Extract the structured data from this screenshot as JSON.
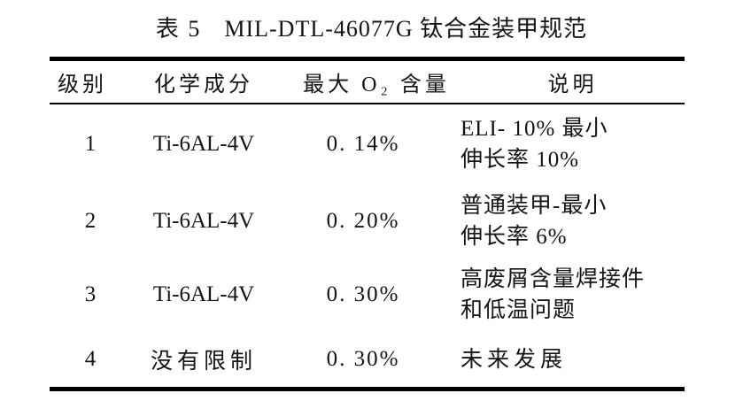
{
  "page": {
    "background": "#ffffff",
    "text_color": "#141414",
    "rule_color": "#000000"
  },
  "caption": {
    "label": "表 5",
    "title": "MIL-DTL-46077G 钛合金装甲规范"
  },
  "table": {
    "columns": [
      "级别",
      "化学成分",
      "最大 O₂ 含量",
      "说明"
    ],
    "rows": [
      {
        "grade": "1",
        "composition": "Ti-6AL-4V",
        "max_o2": "0. 14%",
        "description": [
          "ELI- 10% 最小",
          "伸长率 10%"
        ]
      },
      {
        "grade": "2",
        "composition": "Ti-6AL-4V",
        "max_o2": "0. 20%",
        "description": [
          "普通装甲-最小",
          "伸长率 6%"
        ]
      },
      {
        "grade": "3",
        "composition": "Ti-6AL-4V",
        "max_o2": "0. 30%",
        "description": [
          "高废屑含量焊接件",
          "和低温问题"
        ]
      },
      {
        "grade": "4",
        "composition": "没有限制",
        "max_o2": "0. 30%",
        "description": [
          "未来发展"
        ]
      }
    ]
  }
}
